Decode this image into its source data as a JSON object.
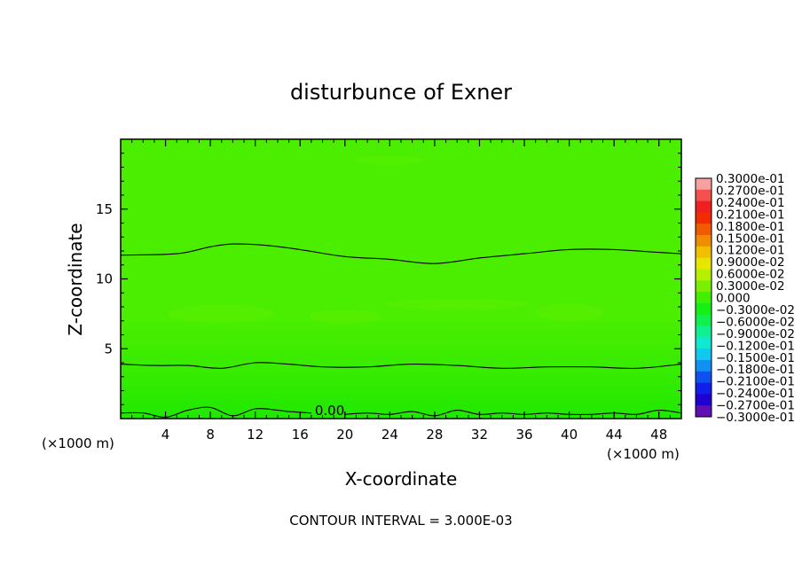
{
  "chart_data": {
    "type": "heatmap",
    "title": "disturbunce of Exner",
    "xlabel": "X-coordinate",
    "ylabel": "Z-coordinate",
    "x_unit": "(×1000 m)",
    "y_unit": "(×1000 m)",
    "xlim": [
      0,
      50
    ],
    "ylim": [
      0,
      20
    ],
    "x_ticks": [
      4,
      8,
      12,
      16,
      20,
      24,
      28,
      32,
      36,
      40,
      44,
      48
    ],
    "y_ticks": [
      5,
      10,
      15
    ],
    "footer": "CONTOUR INTERVAL = 3.000E-03",
    "contour_interval": 0.003,
    "contour_labels": [
      {
        "text": "0.00",
        "x": 17,
        "z": 0.5
      }
    ],
    "contour_lines": [
      {
        "x": [
          0,
          5,
          8,
          10,
          13,
          16,
          20,
          24,
          28,
          32,
          36,
          40,
          44,
          48,
          50
        ],
        "z": [
          11.7,
          11.8,
          12.3,
          12.5,
          12.4,
          12.1,
          11.6,
          11.4,
          11.1,
          11.5,
          11.8,
          12.1,
          12.1,
          11.9,
          11.8
        ]
      },
      {
        "x": [
          0,
          3,
          6,
          9,
          12,
          15,
          18,
          22,
          26,
          30,
          34,
          38,
          42,
          46,
          50
        ],
        "z": [
          3.9,
          3.8,
          3.8,
          3.6,
          4.0,
          3.9,
          3.7,
          3.7,
          3.9,
          3.8,
          3.6,
          3.7,
          3.7,
          3.6,
          3.9
        ]
      },
      {
        "x": [
          0,
          2,
          4,
          6,
          8,
          10,
          12,
          14,
          15,
          17
        ],
        "z": [
          0.4,
          0.4,
          0.1,
          0.6,
          0.8,
          0.2,
          0.7,
          0.6,
          0.5,
          0.4
        ]
      },
      {
        "x": [
          20,
          22,
          24,
          26,
          28,
          30,
          32,
          34,
          36,
          38,
          40,
          42,
          44,
          46,
          48,
          50
        ],
        "z": [
          0.3,
          0.4,
          0.3,
          0.5,
          0.2,
          0.6,
          0.3,
          0.4,
          0.3,
          0.4,
          0.3,
          0.3,
          0.4,
          0.3,
          0.6,
          0.4
        ]
      }
    ],
    "colorbar": {
      "labels": [
        "0.3000e-01",
        "0.2700e-01",
        "0.2400e-01",
        "0.2100e-01",
        "0.1800e-01",
        "0.1500e-01",
        "0.1200e-01",
        "0.9000e-02",
        "0.6000e-02",
        "0.3000e-02",
        "0.000",
        "−0.3000e-02",
        "−0.6000e-02",
        "−0.9000e-02",
        "−0.1200e-01",
        "−0.1500e-01",
        "−0.1800e-01",
        "−0.2100e-01",
        "−0.2400e-01",
        "−0.2700e-01",
        "−0.3000e-01"
      ],
      "colors": [
        "#f7a0a0",
        "#f45050",
        "#f02020",
        "#f02c00",
        "#f05a00",
        "#f08c00",
        "#f0c000",
        "#e6e600",
        "#b4f000",
        "#78f000",
        "#40f000",
        "#14f014",
        "#10f050",
        "#10f090",
        "#10e8d0",
        "#10c8f0",
        "#1090f0",
        "#1050f0",
        "#1020e8",
        "#2000d0",
        "#6010b0"
      ]
    },
    "field_colors": {
      "upper": "#4cee00",
      "lower": "#38ec00",
      "surface": "#20e800",
      "blob": "#5aef00"
    }
  }
}
